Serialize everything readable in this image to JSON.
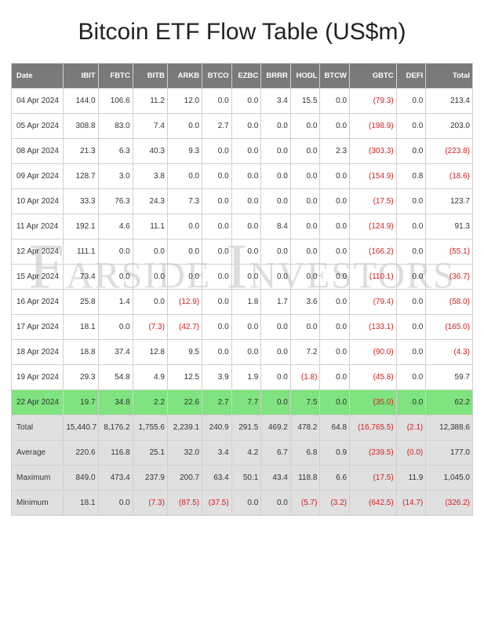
{
  "title": "Bitcoin ETF Flow Table (US$m)",
  "watermark": "Farside Investors",
  "columns": [
    "Date",
    "IBIT",
    "FBTC",
    "BITB",
    "ARKB",
    "BTCO",
    "EZBC",
    "BRRR",
    "HODL",
    "BTCW",
    "GBTC",
    "DEFI",
    "Total"
  ],
  "col_classes": [
    "date",
    "mid",
    "mid",
    "mid",
    "mid",
    "narrow",
    "narrow",
    "narrow",
    "narrow",
    "narrow",
    "wide",
    "narrow",
    "wide"
  ],
  "negative_color": "#d42020",
  "positive_color": "#333333",
  "header_bg": "#7a7a7a",
  "highlight_bg": "#7fe37f",
  "summary_bg": "#e0e0e0",
  "rows": [
    {
      "cells": [
        "04 Apr 2024",
        "144.0",
        "106.6",
        "11.2",
        "12.0",
        "0.0",
        "0.0",
        "3.4",
        "15.5",
        "0.0",
        "(79.3)",
        "0.0",
        "213.4"
      ],
      "class": ""
    },
    {
      "cells": [
        "05 Apr 2024",
        "308.8",
        "83.0",
        "7.4",
        "0.0",
        "2.7",
        "0.0",
        "0.0",
        "0.0",
        "0.0",
        "(198.9)",
        "0.0",
        "203.0"
      ],
      "class": ""
    },
    {
      "cells": [
        "08 Apr 2024",
        "21.3",
        "6.3",
        "40.3",
        "9.3",
        "0.0",
        "0.0",
        "0.0",
        "0.0",
        "2.3",
        "(303.3)",
        "0.0",
        "(223.8)"
      ],
      "class": ""
    },
    {
      "cells": [
        "09 Apr 2024",
        "128.7",
        "3.0",
        "3.8",
        "0.0",
        "0.0",
        "0.0",
        "0.0",
        "0.0",
        "0.0",
        "(154.9)",
        "0.8",
        "(18.6)"
      ],
      "class": ""
    },
    {
      "cells": [
        "10 Apr 2024",
        "33.3",
        "76.3",
        "24.3",
        "7.3",
        "0.0",
        "0.0",
        "0.0",
        "0.0",
        "0.0",
        "(17.5)",
        "0.0",
        "123.7"
      ],
      "class": ""
    },
    {
      "cells": [
        "11 Apr 2024",
        "192.1",
        "4.6",
        "11.1",
        "0.0",
        "0.0",
        "0.0",
        "8.4",
        "0.0",
        "0.0",
        "(124.9)",
        "0.0",
        "91.3"
      ],
      "class": ""
    },
    {
      "cells": [
        "12 Apr 2024",
        "111.1",
        "0.0",
        "0.0",
        "0.0",
        "0.0",
        "0.0",
        "0.0",
        "0.0",
        "0.0",
        "(166.2)",
        "0.0",
        "(55.1)"
      ],
      "class": ""
    },
    {
      "cells": [
        "15 Apr 2024",
        "73.4",
        "0.0",
        "0.0",
        "0.0",
        "0.0",
        "0.0",
        "0.0",
        "0.0",
        "0.0",
        "(110.1)",
        "0.0",
        "(36.7)"
      ],
      "class": ""
    },
    {
      "cells": [
        "16 Apr 2024",
        "25.8",
        "1.4",
        "0.0",
        "(12.9)",
        "0.0",
        "1.8",
        "1.7",
        "3.6",
        "0.0",
        "(79.4)",
        "0.0",
        "(58.0)"
      ],
      "class": ""
    },
    {
      "cells": [
        "17 Apr 2024",
        "18.1",
        "0.0",
        "(7.3)",
        "(42.7)",
        "0.0",
        "0.0",
        "0.0",
        "0.0",
        "0.0",
        "(133.1)",
        "0.0",
        "(165.0)"
      ],
      "class": ""
    },
    {
      "cells": [
        "18 Apr 2024",
        "18.8",
        "37.4",
        "12.8",
        "9.5",
        "0.0",
        "0.0",
        "0.0",
        "7.2",
        "0.0",
        "(90.0)",
        "0.0",
        "(4.3)"
      ],
      "class": ""
    },
    {
      "cells": [
        "19 Apr 2024",
        "29.3",
        "54.8",
        "4.9",
        "12.5",
        "3.9",
        "1.9",
        "0.0",
        "(1.8)",
        "0.0",
        "(45.8)",
        "0.0",
        "59.7"
      ],
      "class": ""
    },
    {
      "cells": [
        "22 Apr 2024",
        "19.7",
        "34.8",
        "2.2",
        "22.6",
        "2.7",
        "7.7",
        "0.0",
        "7.5",
        "0.0",
        "(35.0)",
        "0.0",
        "62.2"
      ],
      "class": "highlight"
    },
    {
      "cells": [
        "Total",
        "15,440.7",
        "8,176.2",
        "1,755.6",
        "2,239.1",
        "240.9",
        "291.5",
        "469.2",
        "478.2",
        "64.8",
        "(16,765.5)",
        "(2.1)",
        "12,388.6"
      ],
      "class": "summary"
    },
    {
      "cells": [
        "Average",
        "220.6",
        "116.8",
        "25.1",
        "32.0",
        "3.4",
        "4.2",
        "6.7",
        "6.8",
        "0.9",
        "(239.5)",
        "(0.0)",
        "177.0"
      ],
      "class": "summary"
    },
    {
      "cells": [
        "Maximum",
        "849.0",
        "473.4",
        "237.9",
        "200.7",
        "63.4",
        "50.1",
        "43.4",
        "118.8",
        "6.6",
        "(17.5)",
        "11.9",
        "1,045.0"
      ],
      "class": "summary"
    },
    {
      "cells": [
        "Minimum",
        "18.1",
        "0.0",
        "(7.3)",
        "(87.5)",
        "(37.5)",
        "0.0",
        "0.0",
        "(5.7)",
        "(3.2)",
        "(642.5)",
        "(14.7)",
        "(326.2)"
      ],
      "class": "summary"
    }
  ]
}
